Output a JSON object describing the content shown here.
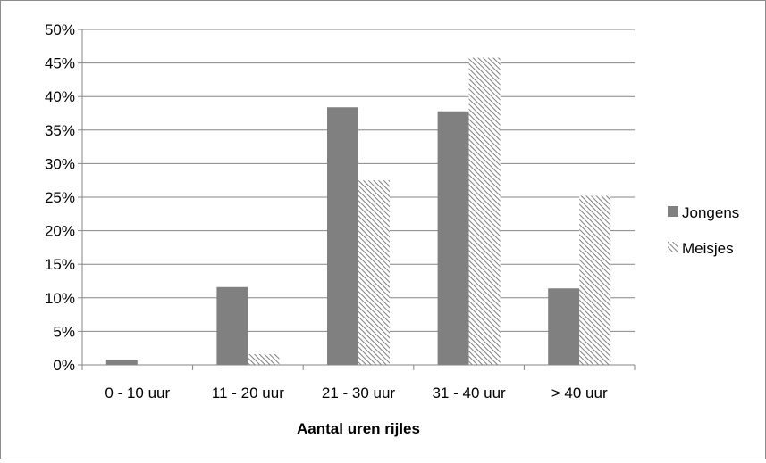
{
  "chart_data": {
    "type": "bar",
    "categories": [
      "0 - 10 uur",
      "11 - 20 uur",
      "21 - 30 uur",
      "31 - 40 uur",
      "> 40 uur"
    ],
    "series": [
      {
        "name": "Jongens",
        "values": [
          0.8,
          11.6,
          38.4,
          37.8,
          11.4
        ],
        "color": "#808080",
        "pattern": "solid"
      },
      {
        "name": "Meisjes",
        "values": [
          0,
          1.6,
          27.5,
          45.8,
          25.2
        ],
        "color": "#808080",
        "pattern": "diagonal-hatch"
      }
    ],
    "title": "",
    "xlabel": "Aantal uren rijles",
    "ylabel": "",
    "ylim": [
      0,
      50
    ],
    "ytick_step": 5,
    "ytick_format": "percent",
    "grid": true,
    "legend_position": "right"
  }
}
